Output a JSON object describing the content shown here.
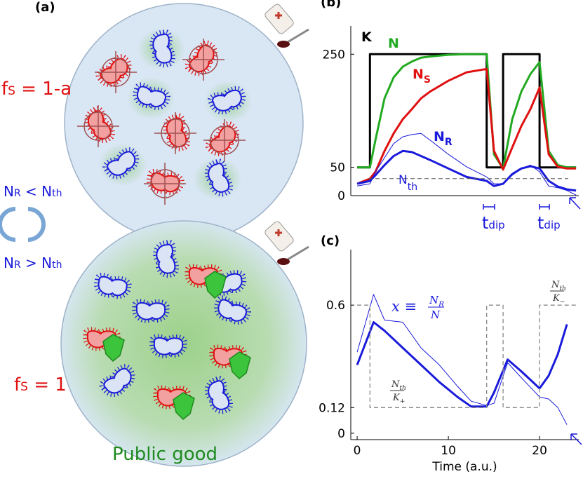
{
  "panel_a": {
    "label": "(a)",
    "top_formula": {
      "main": "f",
      "sub": "S",
      "rest": " = 1-a"
    },
    "cond_low": {
      "n": "N",
      "n_sub": "R",
      "op": " < N",
      "th_sub": "th"
    },
    "cond_high": {
      "n": "N",
      "n_sub": "R",
      "op": " > N",
      "th_sub": "th"
    },
    "bottom_formula": {
      "main": "f",
      "sub": "S",
      "rest": " = 1"
    },
    "caption": "Public good"
  },
  "chart_data": [
    {
      "type": "line",
      "panel": "(b)",
      "x": [
        0,
        1.4,
        2,
        3,
        4,
        5,
        6,
        7,
        8,
        10,
        12,
        14.2,
        15,
        16,
        17,
        18,
        19,
        20,
        21,
        22,
        23,
        24
      ],
      "xlim": [
        -0.7,
        24.3
      ],
      "ylim": [
        0,
        300
      ],
      "yticks": [
        0,
        50,
        250
      ],
      "series": [
        {
          "name": "K",
          "color": "#000000",
          "width": 3,
          "x": [
            0,
            1.4,
            1.4,
            14.2,
            14.2,
            16,
            16,
            20,
            20,
            24
          ],
          "values": [
            50,
            50,
            250,
            250,
            50,
            50,
            250,
            250,
            50,
            50
          ]
        },
        {
          "name": "N",
          "color": "#22aa22",
          "width": 3,
          "values": [
            50,
            50,
            98,
            172,
            209,
            228,
            237,
            244,
            246,
            249,
            250,
            250,
            73,
            48,
            135,
            184,
            215,
            236,
            79,
            54,
            50,
            50
          ]
        },
        {
          "name": "N",
          "name_sub": "S",
          "color": "#e01010",
          "width": 3,
          "values": [
            21,
            30,
            42,
            79,
            110,
            135,
            153,
            172,
            184,
            203,
            218,
            224,
            79,
            46,
            85,
            123,
            153,
            191,
            73,
            51,
            48,
            48
          ]
        },
        {
          "name": "N",
          "name_sub": "R",
          "color": "#1a1adb",
          "width": 3,
          "values": [
            21,
            26,
            36,
            54,
            70,
            79,
            77,
            70,
            63,
            48,
            33,
            26,
            17,
            21,
            38,
            48,
            52,
            48,
            26,
            16,
            11,
            9
          ]
        },
        {
          "color": "#1a1adb",
          "width": 1,
          "values": [
            17,
            21,
            42,
            67,
            92,
            104,
            108,
            110,
            98,
            73,
            51,
            33,
            21,
            21,
            36,
            48,
            54,
            42,
            17,
            14,
            9,
            1
          ]
        }
      ],
      "threshold": {
        "value": 30,
        "label": "N",
        "label_sub": "th"
      },
      "annotations": [
        {
          "main": "t",
          "sub": "dip"
        },
        {
          "main": "t",
          "sub": "dip"
        }
      ]
    },
    {
      "type": "line",
      "panel": "(c)",
      "x": [
        0,
        1.8,
        3,
        5,
        7,
        9,
        11,
        12.5,
        14.2,
        15,
        16.5,
        18,
        20,
        21,
        22,
        23
      ],
      "xlim": [
        -0.7,
        24.3
      ],
      "ylim": [
        -0.03,
        0.86
      ],
      "xticks": [
        0,
        10,
        20
      ],
      "yticks": [
        0,
        0.12,
        0.6
      ],
      "xlabel": "Time (a.u.)",
      "series": [
        {
          "color": "#1a1adb",
          "width": 3,
          "values": [
            0.32,
            0.52,
            0.48,
            0.4,
            0.32,
            0.24,
            0.17,
            0.125,
            0.125,
            0.19,
            0.345,
            0.29,
            0.21,
            0.27,
            0.37,
            0.51
          ]
        },
        {
          "color": "#1a1adb",
          "width": 1,
          "values": [
            0.38,
            0.65,
            0.53,
            0.52,
            0.4,
            0.32,
            0.22,
            0.15,
            0.13,
            0.14,
            0.33,
            0.26,
            0.17,
            0.16,
            0.12,
            0.04
          ]
        },
        {
          "color": "#888888",
          "width": 1.3,
          "dash": true,
          "x": [
            0,
            1.4,
            1.4,
            14.2,
            14.2,
            16,
            16,
            20,
            20,
            24
          ],
          "values": [
            0.6,
            0.6,
            0.12,
            0.12,
            0.6,
            0.6,
            0.12,
            0.12,
            0.6,
            0.6
          ]
        }
      ],
      "formula": {
        "lhs": "x ≡ ",
        "num": "N",
        "num_sub": "R",
        "den": "N"
      },
      "low_ratio": {
        "num": "N",
        "num_sub": "th",
        "den": "K",
        "den_sub": "+"
      },
      "high_ratio": {
        "num": "N",
        "num_sub": "th",
        "den": "K",
        "den_sub": "−"
      }
    }
  ]
}
